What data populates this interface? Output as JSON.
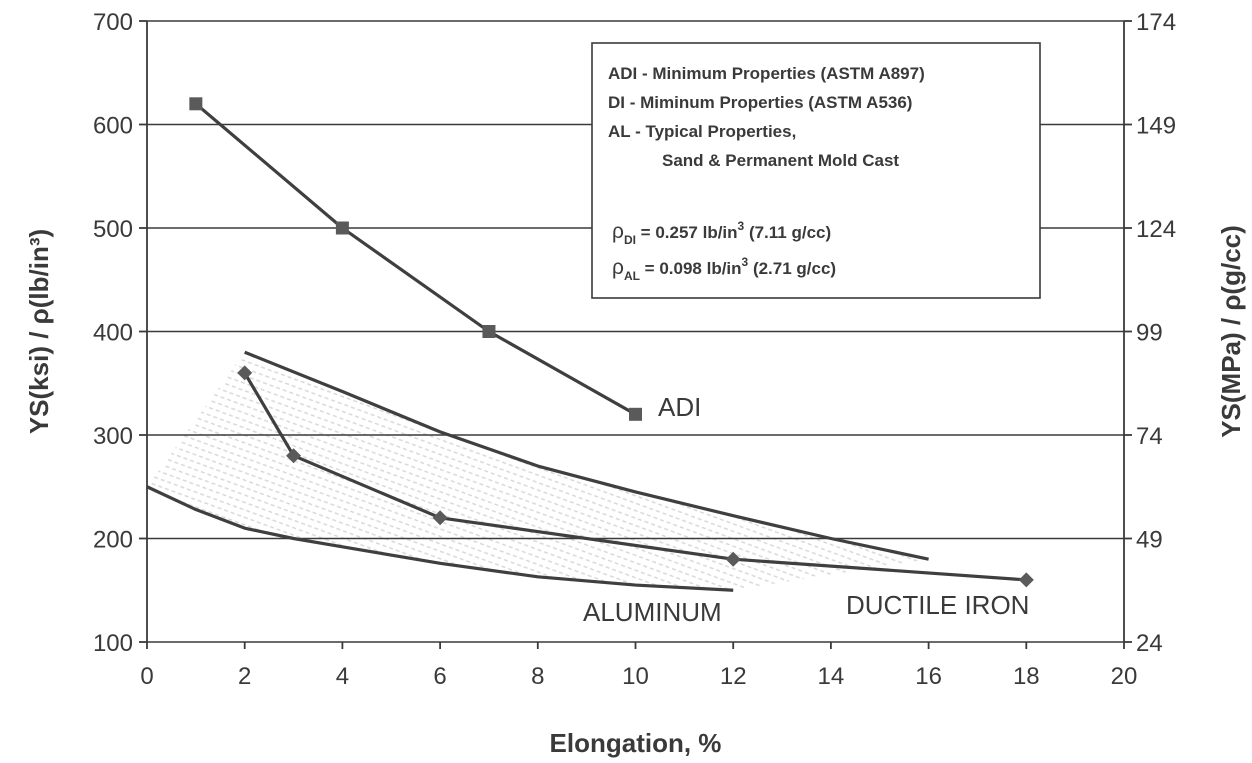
{
  "chart_data": {
    "type": "line",
    "xlabel": "Elongation, %",
    "ylabel": "YS(ksi) / ρ(lb/in³)",
    "y2label": "YS(MPa) / ρ(g/cc)",
    "xlim": [
      0,
      20
    ],
    "ylim": [
      100,
      700
    ],
    "x_ticks": [
      0,
      2,
      4,
      6,
      8,
      10,
      12,
      14,
      16,
      18,
      20
    ],
    "y_ticks": [
      100,
      200,
      300,
      400,
      500,
      600,
      700
    ],
    "y2_ticks": [
      {
        "at": 100,
        "label": "24"
      },
      {
        "at": 200,
        "label": "49"
      },
      {
        "at": 300,
        "label": "74"
      },
      {
        "at": 400,
        "label": "99"
      },
      {
        "at": 500,
        "label": "124"
      },
      {
        "at": 600,
        "label": "149"
      },
      {
        "at": 700,
        "label": "174"
      }
    ],
    "grid": "horizontal",
    "legend_position": "top-right",
    "legend_lines": [
      "ADI - Minimum Properties (ASTM A897)",
      "DI   - Miminum Properties (ASTM A536)",
      "AL  - Typical Properties,",
      "Sand & Permanent Mold Cast"
    ],
    "density_lines": [
      {
        "sym": "ρ",
        "sub": "DI",
        "pre": " = 0.257 lb/in",
        "sup": "3",
        "post": " (7.11 g/cc)"
      },
      {
        "sym": "ρ",
        "sub": "AL",
        "pre": " = 0.098 lb/in",
        "sup": "3",
        "post": " (2.71 g/cc)"
      }
    ],
    "annotations": {
      "adi": "ADI",
      "aluminum": "ALUMINUM",
      "ductile_iron": "DUCTILE IRON"
    },
    "series": [
      {
        "key": "adi",
        "marker": "square",
        "x": [
          1,
          4,
          7,
          10
        ],
        "y": [
          620,
          500,
          400,
          320
        ]
      },
      {
        "key": "di",
        "marker": "diamond",
        "x": [
          2,
          3,
          6,
          12,
          18
        ],
        "y": [
          360,
          280,
          220,
          180,
          160
        ]
      },
      {
        "key": "di_upper",
        "marker": "none",
        "x": [
          2,
          4,
          6,
          8,
          10,
          12,
          14,
          16
        ],
        "y": [
          380,
          342,
          303,
          270,
          245,
          222,
          200,
          180
        ]
      },
      {
        "key": "al_lower",
        "marker": "none",
        "x": [
          0,
          1,
          2,
          3,
          4,
          6,
          8,
          10,
          12
        ],
        "y": [
          250,
          228,
          210,
          200,
          192,
          176,
          163,
          155,
          150
        ]
      }
    ],
    "shaded_region": {
      "from_series": "di_upper",
      "to_series": "al_lower",
      "style": "hatched-light"
    }
  }
}
